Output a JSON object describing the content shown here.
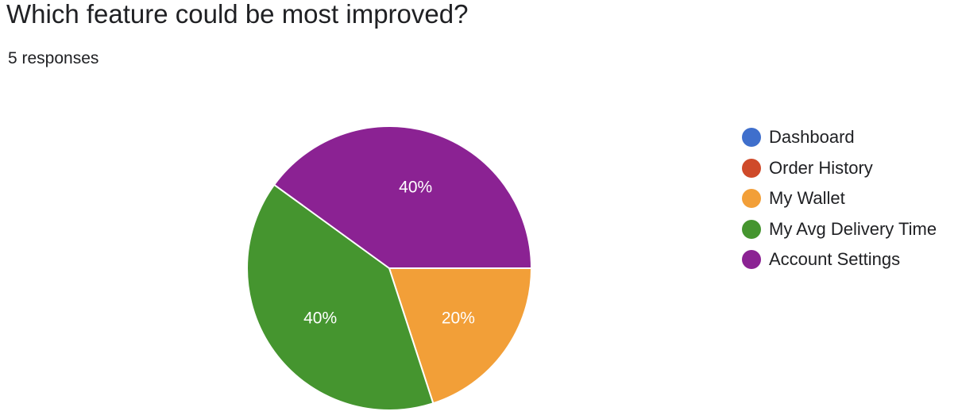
{
  "question": {
    "title": "Which feature could be most improved?",
    "responses_label": "5 responses"
  },
  "chart_data": {
    "type": "pie",
    "title": "Which feature could be most improved?",
    "subtitle": "5 responses",
    "legend_position": "right",
    "categories": [
      "Dashboard",
      "Order History",
      "My Wallet",
      "My Avg Delivery Time",
      "Account Settings"
    ],
    "values": [
      0,
      0,
      1,
      2,
      2
    ],
    "percent_labels": [
      "0%",
      "0%",
      "20%",
      "40%",
      "40%"
    ],
    "colors": [
      "#3f6fcc",
      "#cf4a2a",
      "#f29f38",
      "#45952f",
      "#8b2293"
    ]
  }
}
